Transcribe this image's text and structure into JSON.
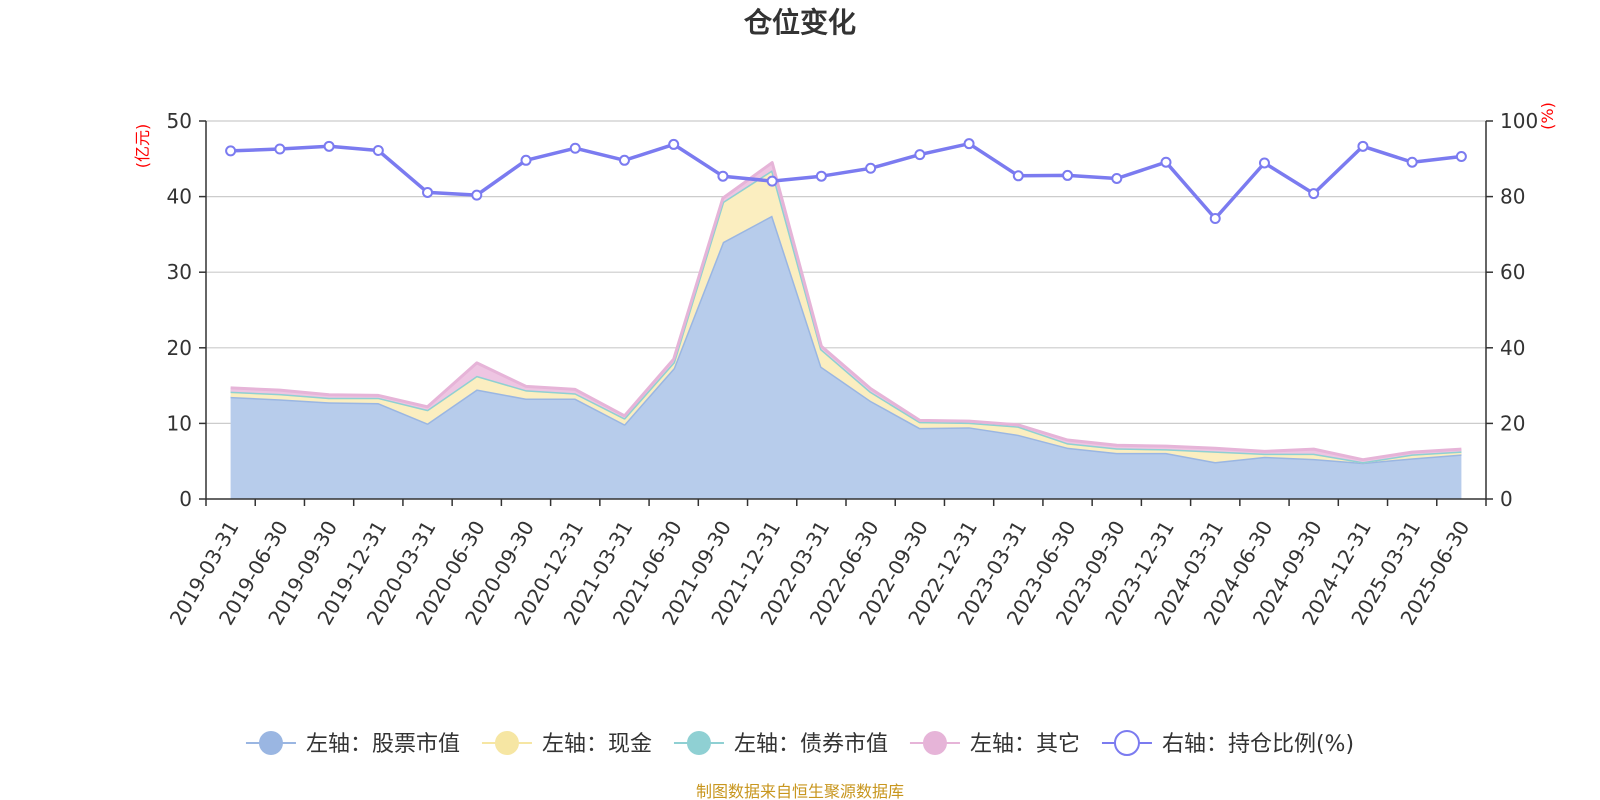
{
  "chart_data": {
    "type": "area",
    "title": "仓位变化",
    "left_unit": "(亿元)",
    "right_unit": "(%)",
    "categories": [
      "2019-03-31",
      "2019-06-30",
      "2019-09-30",
      "2019-12-31",
      "2020-03-31",
      "2020-06-30",
      "2020-09-30",
      "2020-12-31",
      "2021-03-31",
      "2021-06-30",
      "2021-09-30",
      "2021-12-31",
      "2022-03-31",
      "2022-06-30",
      "2022-09-30",
      "2022-12-31",
      "2023-03-31",
      "2023-06-30",
      "2023-09-30",
      "2023-12-31",
      "2024-03-31",
      "2024-06-30",
      "2024-09-30",
      "2024-12-31",
      "2025-03-31",
      "2025-06-30"
    ],
    "left_ylim": [
      0,
      50
    ],
    "left_ticks": [
      0,
      10,
      20,
      30,
      40,
      50
    ],
    "right_ylim": [
      0,
      100
    ],
    "right_ticks": [
      0,
      20,
      40,
      60,
      80,
      100
    ],
    "grid": true,
    "stacked": true,
    "series": [
      {
        "name": "左轴：股票市值",
        "axis": "left",
        "type": "area",
        "color": "#9ab6e2",
        "fill": "#b7cceb",
        "values": [
          13.5,
          13.2,
          12.8,
          12.7,
          10.0,
          14.5,
          13.3,
          13.3,
          9.9,
          17.3,
          34.0,
          37.5,
          17.5,
          13.0,
          9.4,
          9.5,
          8.5,
          6.8,
          6.1,
          6.1,
          4.9,
          5.6,
          5.3,
          4.8,
          5.4,
          5.9
        ]
      },
      {
        "name": "左轴：现金",
        "axis": "left",
        "type": "area",
        "color": "#f6e6a3",
        "fill": "#fbeec0",
        "values": [
          0.7,
          0.7,
          0.6,
          0.7,
          1.8,
          1.8,
          1.1,
          0.7,
          0.8,
          0.8,
          5.3,
          6.0,
          2.3,
          1.2,
          0.8,
          0.6,
          1.1,
          0.6,
          0.6,
          0.5,
          1.4,
          0.4,
          0.7,
          0.1,
          0.5,
          0.4
        ]
      },
      {
        "name": "左轴：债券市值",
        "axis": "left",
        "type": "area",
        "color": "#8fd0d3",
        "fill": "#a8dde0",
        "values": [
          0,
          0,
          0,
          0,
          0,
          0,
          0,
          0,
          0,
          0,
          0,
          0,
          0,
          0,
          0,
          0,
          0,
          0,
          0,
          0,
          0,
          0,
          0,
          0,
          0,
          0
        ]
      },
      {
        "name": "左轴：其它",
        "axis": "left",
        "type": "area",
        "color": "#e6b4d8",
        "fill": "#eec5e2",
        "values": [
          0.5,
          0.5,
          0.4,
          0.3,
          0.4,
          1.7,
          0.5,
          0.5,
          0.3,
          0.4,
          0.5,
          1.0,
          0.4,
          0.4,
          0.2,
          0.2,
          0.2,
          0.4,
          0.4,
          0.4,
          0.4,
          0.3,
          0.6,
          0.3,
          0.3,
          0.3
        ]
      },
      {
        "name": "右轴：持仓比例(%)",
        "axis": "right",
        "type": "line",
        "color": "#7b7bf0",
        "values": [
          92.1,
          92.6,
          93.3,
          92.2,
          81.1,
          80.4,
          89.6,
          92.8,
          89.6,
          93.8,
          85.4,
          84.1,
          85.4,
          87.5,
          91.1,
          94.0,
          85.5,
          85.6,
          84.8,
          89.1,
          74.2,
          88.9,
          80.8,
          93.3,
          89.1,
          90.6
        ]
      }
    ]
  },
  "source": "制图数据来自恒生聚源数据库"
}
